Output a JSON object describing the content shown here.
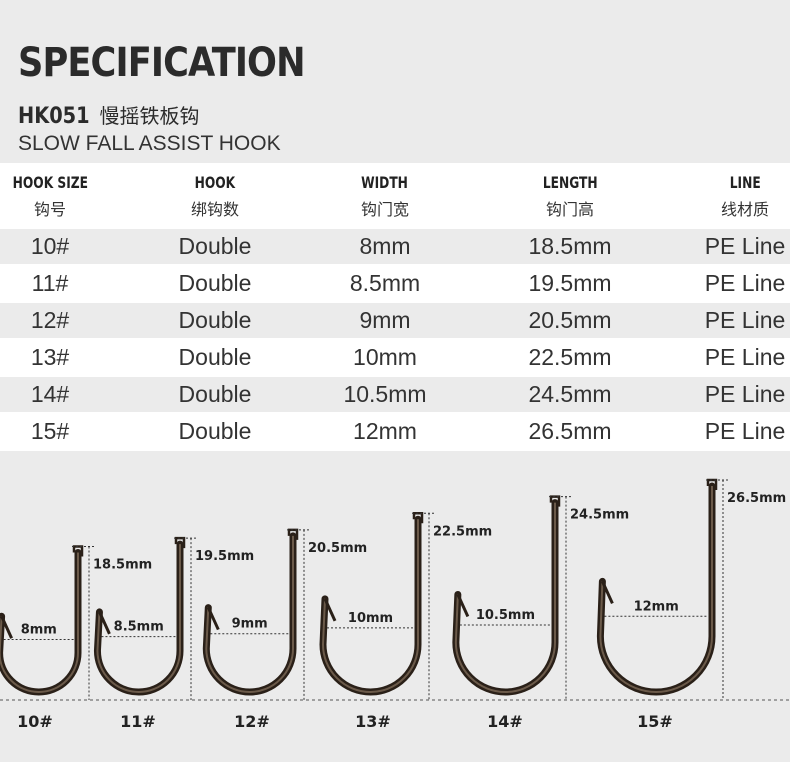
{
  "header": {
    "title": "SPECIFICATION",
    "model_code": "HK051",
    "model_cn": "慢摇铁板钩",
    "subtitle": "SLOW FALL ASSIST HOOK"
  },
  "table": {
    "columns": [
      {
        "en": "HOOK SIZE",
        "cn": "钩号"
      },
      {
        "en": "HOOK",
        "cn": "绑钩数"
      },
      {
        "en": "WIDTH",
        "cn": "钩门宽"
      },
      {
        "en": "LENGTH",
        "cn": "钩门高"
      },
      {
        "en": "LINE",
        "cn": "线材质"
      }
    ],
    "rows": [
      [
        "10#",
        "Double",
        "8mm",
        "18.5mm",
        "PE Line"
      ],
      [
        "11#",
        "Double",
        "8.5mm",
        "19.5mm",
        "PE Line"
      ],
      [
        "12#",
        "Double",
        "9mm",
        "20.5mm",
        "PE Line"
      ],
      [
        "13#",
        "Double",
        "10mm",
        "22.5mm",
        "PE Line"
      ],
      [
        "14#",
        "Double",
        "10.5mm",
        "24.5mm",
        "PE Line"
      ],
      [
        "15#",
        "Double",
        "12mm",
        "26.5mm",
        "PE Line"
      ]
    ]
  },
  "diagram": {
    "hooks": [
      {
        "size": "10#",
        "width_label": "8mm",
        "length_label": "18.5mm",
        "width_mm": 8,
        "length_mm": 18.5
      },
      {
        "size": "11#",
        "width_label": "8.5mm",
        "length_label": "19.5mm",
        "width_mm": 8.5,
        "length_mm": 19.5
      },
      {
        "size": "12#",
        "width_label": "9mm",
        "length_label": "20.5mm",
        "width_mm": 9,
        "length_mm": 20.5
      },
      {
        "size": "13#",
        "width_label": "10mm",
        "length_label": "22.5mm",
        "width_mm": 10,
        "length_mm": 22.5
      },
      {
        "size": "14#",
        "width_label": "10.5mm",
        "length_label": "24.5mm",
        "width_mm": 10.5,
        "length_mm": 24.5
      },
      {
        "size": "15#",
        "width_label": "12mm",
        "length_label": "26.5mm",
        "width_mm": 12,
        "length_mm": 26.5
      }
    ],
    "hook_color": "#2a2018"
  }
}
